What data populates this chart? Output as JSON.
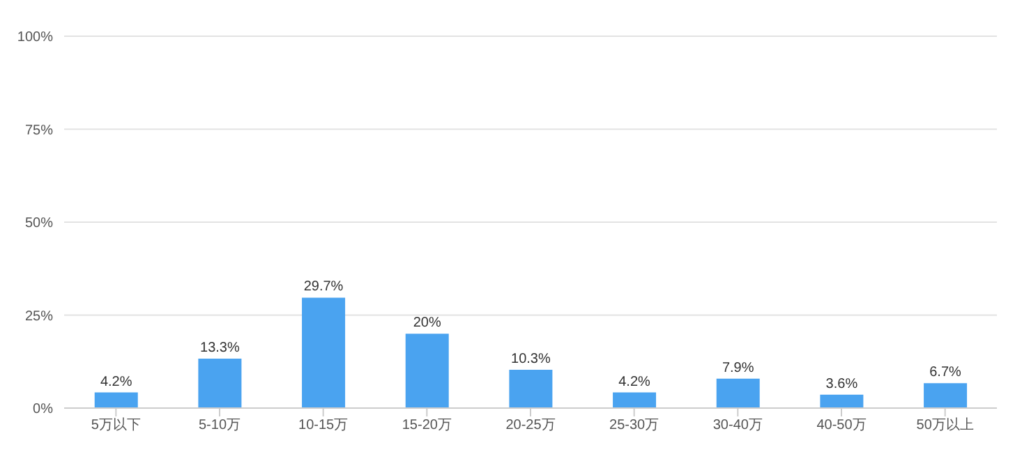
{
  "chart_data": {
    "type": "bar",
    "categories": [
      "5万以下",
      "5-10万",
      "10-15万",
      "15-20万",
      "20-25万",
      "25-30万",
      "30-40万",
      "40-50万",
      "50万以上"
    ],
    "values": [
      4.2,
      13.3,
      29.7,
      20,
      10.3,
      4.2,
      7.9,
      3.6,
      6.7
    ],
    "value_labels": [
      "4.2%",
      "13.3%",
      "29.7%",
      "20%",
      "10.3%",
      "4.2%",
      "7.9%",
      "3.6%",
      "6.7%"
    ],
    "color": "#4aa3f0",
    "ylim": [
      0,
      100
    ],
    "yticks": [
      {
        "value": 0,
        "label": "0%"
      },
      {
        "value": 25,
        "label": "25%"
      },
      {
        "value": 50,
        "label": "50%"
      },
      {
        "value": 75,
        "label": "75%"
      },
      {
        "value": 100,
        "label": "100%"
      }
    ],
    "grid": "y",
    "legend": false
  }
}
